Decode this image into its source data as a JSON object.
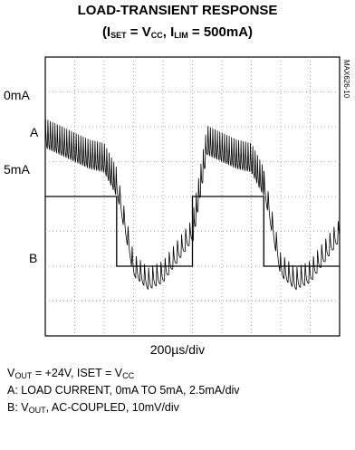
{
  "title": {
    "line1": "LOAD-TRANSIENT RESPONSE",
    "line2": {
      "open": "(I",
      "sub1": "SET",
      "mid1": " = V",
      "sub2": "CC",
      "mid2": ", I",
      "sub3": "LIM",
      "close": " = 500mA)"
    }
  },
  "side_label": "MAX626-10",
  "channel_labels": {
    "top_level": "0mA",
    "trace_a": "A",
    "bottom_level": "5mA",
    "trace_b": "B"
  },
  "x_scale": "200µs/div",
  "notes": {
    "line1": {
      "pre": "V",
      "sub1": "OUT",
      "mid": " = +24V, ISET = V",
      "sub2": "CC"
    },
    "line2": "A: LOAD CURRENT, 0mA TO 5mA, 2.5mA/div",
    "line3": {
      "pre": "B: V",
      "sub": "OUT",
      "post": ",  AC-COUPLED, 10mV/div"
    }
  },
  "chart_data": {
    "type": "line",
    "grid": true,
    "x_divisions": 10,
    "y_divisions": 8,
    "x_range_us": [
      0,
      2000
    ],
    "trace_a_ylim_mA": [
      -10,
      10
    ],
    "trace_b_ylim_mV": [
      -40,
      40
    ],
    "series": [
      {
        "name": "A",
        "x_us": [
          0,
          485,
          485,
          1000,
          1000,
          1485,
          1485,
          2000
        ],
        "values_mA": [
          0,
          0,
          5,
          5,
          0,
          0,
          5,
          5
        ]
      },
      {
        "name": "B",
        "x_us": [
          0,
          100,
          200,
          300,
          400,
          485,
          600,
          700,
          800,
          900,
          1000,
          1100,
          1200,
          1300,
          1400,
          1485,
          1600,
          1700,
          1800,
          1900,
          2000
        ],
        "values_mV": [
          18,
          16,
          14,
          12,
          11,
          4,
          -20,
          -24,
          -22,
          -16,
          -10,
          16,
          14,
          12,
          11,
          4,
          -20,
          -24,
          -22,
          -16,
          -10
        ]
      }
    ],
    "colors": {
      "trace": "#000000",
      "grid": "#8c8c8c",
      "frame": "#000000"
    }
  }
}
